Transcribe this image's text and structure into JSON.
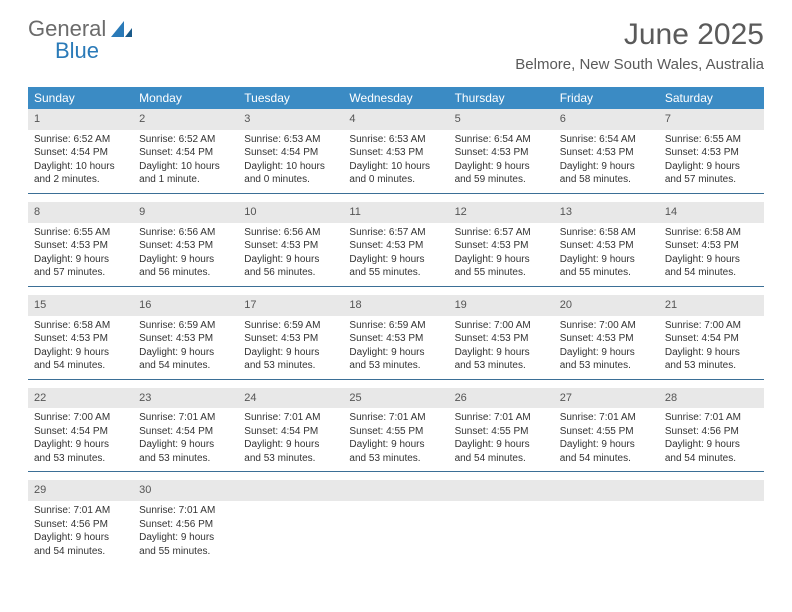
{
  "logo": {
    "text_general": "General",
    "text_blue": "Blue"
  },
  "title": "June 2025",
  "subtitle": "Belmore, New South Wales, Australia",
  "colors": {
    "header_bg": "#3b8bc4",
    "header_text": "#ffffff",
    "daynum_bg": "#e8e8e8",
    "week_border": "#3b6f96",
    "title_color": "#5a5a5a",
    "logo_gray": "#6b6b6b",
    "logo_blue": "#2a7ab8"
  },
  "day_labels": [
    "Sunday",
    "Monday",
    "Tuesday",
    "Wednesday",
    "Thursday",
    "Friday",
    "Saturday"
  ],
  "weeks": [
    [
      {
        "num": "1",
        "sunrise": "Sunrise: 6:52 AM",
        "sunset": "Sunset: 4:54 PM",
        "daylight": "Daylight: 10 hours and 2 minutes."
      },
      {
        "num": "2",
        "sunrise": "Sunrise: 6:52 AM",
        "sunset": "Sunset: 4:54 PM",
        "daylight": "Daylight: 10 hours and 1 minute."
      },
      {
        "num": "3",
        "sunrise": "Sunrise: 6:53 AM",
        "sunset": "Sunset: 4:54 PM",
        "daylight": "Daylight: 10 hours and 0 minutes."
      },
      {
        "num": "4",
        "sunrise": "Sunrise: 6:53 AM",
        "sunset": "Sunset: 4:53 PM",
        "daylight": "Daylight: 10 hours and 0 minutes."
      },
      {
        "num": "5",
        "sunrise": "Sunrise: 6:54 AM",
        "sunset": "Sunset: 4:53 PM",
        "daylight": "Daylight: 9 hours and 59 minutes."
      },
      {
        "num": "6",
        "sunrise": "Sunrise: 6:54 AM",
        "sunset": "Sunset: 4:53 PM",
        "daylight": "Daylight: 9 hours and 58 minutes."
      },
      {
        "num": "7",
        "sunrise": "Sunrise: 6:55 AM",
        "sunset": "Sunset: 4:53 PM",
        "daylight": "Daylight: 9 hours and 57 minutes."
      }
    ],
    [
      {
        "num": "8",
        "sunrise": "Sunrise: 6:55 AM",
        "sunset": "Sunset: 4:53 PM",
        "daylight": "Daylight: 9 hours and 57 minutes."
      },
      {
        "num": "9",
        "sunrise": "Sunrise: 6:56 AM",
        "sunset": "Sunset: 4:53 PM",
        "daylight": "Daylight: 9 hours and 56 minutes."
      },
      {
        "num": "10",
        "sunrise": "Sunrise: 6:56 AM",
        "sunset": "Sunset: 4:53 PM",
        "daylight": "Daylight: 9 hours and 56 minutes."
      },
      {
        "num": "11",
        "sunrise": "Sunrise: 6:57 AM",
        "sunset": "Sunset: 4:53 PM",
        "daylight": "Daylight: 9 hours and 55 minutes."
      },
      {
        "num": "12",
        "sunrise": "Sunrise: 6:57 AM",
        "sunset": "Sunset: 4:53 PM",
        "daylight": "Daylight: 9 hours and 55 minutes."
      },
      {
        "num": "13",
        "sunrise": "Sunrise: 6:58 AM",
        "sunset": "Sunset: 4:53 PM",
        "daylight": "Daylight: 9 hours and 55 minutes."
      },
      {
        "num": "14",
        "sunrise": "Sunrise: 6:58 AM",
        "sunset": "Sunset: 4:53 PM",
        "daylight": "Daylight: 9 hours and 54 minutes."
      }
    ],
    [
      {
        "num": "15",
        "sunrise": "Sunrise: 6:58 AM",
        "sunset": "Sunset: 4:53 PM",
        "daylight": "Daylight: 9 hours and 54 minutes."
      },
      {
        "num": "16",
        "sunrise": "Sunrise: 6:59 AM",
        "sunset": "Sunset: 4:53 PM",
        "daylight": "Daylight: 9 hours and 54 minutes."
      },
      {
        "num": "17",
        "sunrise": "Sunrise: 6:59 AM",
        "sunset": "Sunset: 4:53 PM",
        "daylight": "Daylight: 9 hours and 53 minutes."
      },
      {
        "num": "18",
        "sunrise": "Sunrise: 6:59 AM",
        "sunset": "Sunset: 4:53 PM",
        "daylight": "Daylight: 9 hours and 53 minutes."
      },
      {
        "num": "19",
        "sunrise": "Sunrise: 7:00 AM",
        "sunset": "Sunset: 4:53 PM",
        "daylight": "Daylight: 9 hours and 53 minutes."
      },
      {
        "num": "20",
        "sunrise": "Sunrise: 7:00 AM",
        "sunset": "Sunset: 4:53 PM",
        "daylight": "Daylight: 9 hours and 53 minutes."
      },
      {
        "num": "21",
        "sunrise": "Sunrise: 7:00 AM",
        "sunset": "Sunset: 4:54 PM",
        "daylight": "Daylight: 9 hours and 53 minutes."
      }
    ],
    [
      {
        "num": "22",
        "sunrise": "Sunrise: 7:00 AM",
        "sunset": "Sunset: 4:54 PM",
        "daylight": "Daylight: 9 hours and 53 minutes."
      },
      {
        "num": "23",
        "sunrise": "Sunrise: 7:01 AM",
        "sunset": "Sunset: 4:54 PM",
        "daylight": "Daylight: 9 hours and 53 minutes."
      },
      {
        "num": "24",
        "sunrise": "Sunrise: 7:01 AM",
        "sunset": "Sunset: 4:54 PM",
        "daylight": "Daylight: 9 hours and 53 minutes."
      },
      {
        "num": "25",
        "sunrise": "Sunrise: 7:01 AM",
        "sunset": "Sunset: 4:55 PM",
        "daylight": "Daylight: 9 hours and 53 minutes."
      },
      {
        "num": "26",
        "sunrise": "Sunrise: 7:01 AM",
        "sunset": "Sunset: 4:55 PM",
        "daylight": "Daylight: 9 hours and 54 minutes."
      },
      {
        "num": "27",
        "sunrise": "Sunrise: 7:01 AM",
        "sunset": "Sunset: 4:55 PM",
        "daylight": "Daylight: 9 hours and 54 minutes."
      },
      {
        "num": "28",
        "sunrise": "Sunrise: 7:01 AM",
        "sunset": "Sunset: 4:56 PM",
        "daylight": "Daylight: 9 hours and 54 minutes."
      }
    ],
    [
      {
        "num": "29",
        "sunrise": "Sunrise: 7:01 AM",
        "sunset": "Sunset: 4:56 PM",
        "daylight": "Daylight: 9 hours and 54 minutes."
      },
      {
        "num": "30",
        "sunrise": "Sunrise: 7:01 AM",
        "sunset": "Sunset: 4:56 PM",
        "daylight": "Daylight: 9 hours and 55 minutes."
      },
      {
        "empty": true
      },
      {
        "empty": true
      },
      {
        "empty": true
      },
      {
        "empty": true
      },
      {
        "empty": true
      }
    ]
  ]
}
